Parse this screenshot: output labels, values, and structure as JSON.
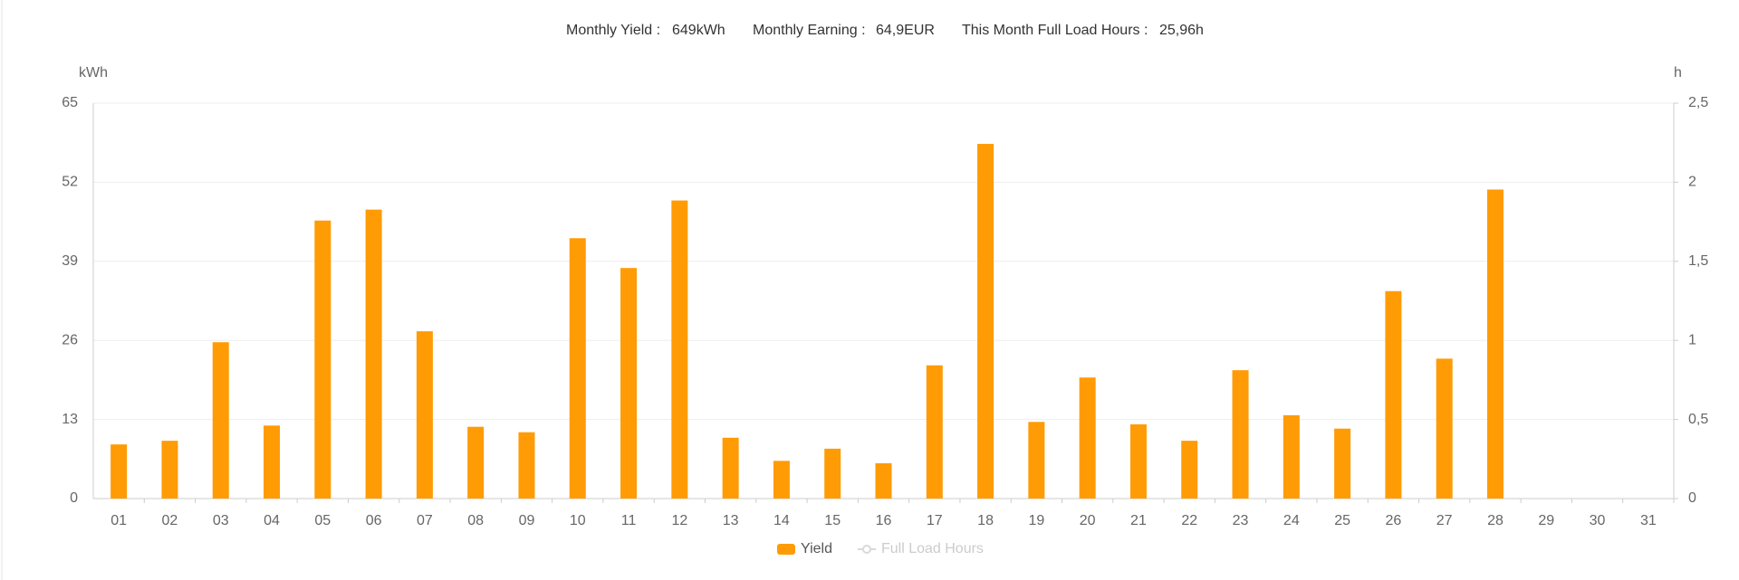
{
  "header": {
    "items": [
      {
        "label": "Monthly Yield :",
        "value": "649kWh"
      },
      {
        "label": "Monthly Earning :",
        "value": "64,9EUR"
      },
      {
        "label": "This Month Full Load Hours :",
        "value": "25,96h"
      }
    ]
  },
  "chart_data": {
    "type": "bar",
    "y_label": "kWh",
    "y2_label": "h",
    "categories": [
      "01",
      "02",
      "03",
      "04",
      "05",
      "06",
      "07",
      "08",
      "09",
      "10",
      "11",
      "12",
      "13",
      "14",
      "15",
      "16",
      "17",
      "18",
      "19",
      "20",
      "21",
      "22",
      "23",
      "24",
      "25",
      "26",
      "27",
      "28",
      "29",
      "30",
      "31"
    ],
    "series": [
      {
        "name": "Yield",
        "color": "#ff9b05",
        "values": [
          8.9,
          9.5,
          25.7,
          12.0,
          45.7,
          47.5,
          27.5,
          11.8,
          10.9,
          42.8,
          37.9,
          49.0,
          10.0,
          6.2,
          8.2,
          5.8,
          21.9,
          58.3,
          12.6,
          19.9,
          12.2,
          9.5,
          21.1,
          13.7,
          11.5,
          34.1,
          23.0,
          50.8,
          null,
          null,
          null
        ]
      },
      {
        "name": "Full Load Hours",
        "color": "#d9d9d9",
        "axis": "y2",
        "hidden": true,
        "values": [
          null,
          null,
          null,
          null,
          null,
          null,
          null,
          null,
          null,
          null,
          null,
          null,
          null,
          null,
          null,
          null,
          null,
          null,
          null,
          null,
          null,
          null,
          null,
          null,
          null,
          null,
          null,
          null,
          null,
          null,
          null
        ]
      }
    ],
    "ylim": [
      0,
      65
    ],
    "yticks": [
      0,
      13,
      26,
      39,
      52,
      65
    ],
    "y2lim": [
      0,
      2.5
    ],
    "y2ticks": [
      0,
      {
        "value": 0.5,
        "label": "0,5"
      },
      1,
      {
        "value": 1.5,
        "label": "1,5"
      },
      2,
      {
        "value": 2.5,
        "label": "2,5"
      }
    ],
    "grid": true,
    "legend": "bottom"
  }
}
